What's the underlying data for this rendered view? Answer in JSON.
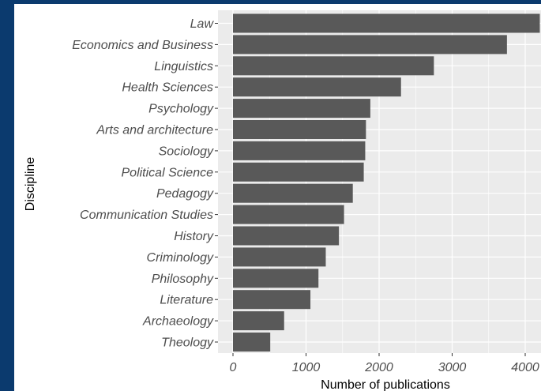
{
  "chart_data": {
    "type": "bar",
    "orientation": "horizontal",
    "categories": [
      "Law",
      "Economics and Business",
      "Linguistics",
      "Health Sciences",
      "Psychology",
      "Arts and architecture",
      "Sociology",
      "Political Science",
      "Pedagogy",
      "Communication Studies",
      "History",
      "Criminology",
      "Philosophy",
      "Literature",
      "Archaeology",
      "Theology"
    ],
    "values": [
      4200,
      3750,
      2750,
      2300,
      1880,
      1820,
      1810,
      1790,
      1640,
      1520,
      1450,
      1270,
      1170,
      1060,
      700,
      510
    ],
    "xlabel": "Number of publications",
    "ylabel": "Discipline",
    "xlim": [
      0,
      4200
    ],
    "xticks": [
      0,
      1000,
      2000,
      3000,
      4000
    ],
    "xtick_labels": [
      "0",
      "1000",
      "2000",
      "3000",
      "4000"
    ],
    "grid": true,
    "colors": {
      "bar": "#595959",
      "panel": "#ebebeb",
      "grid": "#ffffff",
      "page_border": "#0b3a6e"
    }
  }
}
